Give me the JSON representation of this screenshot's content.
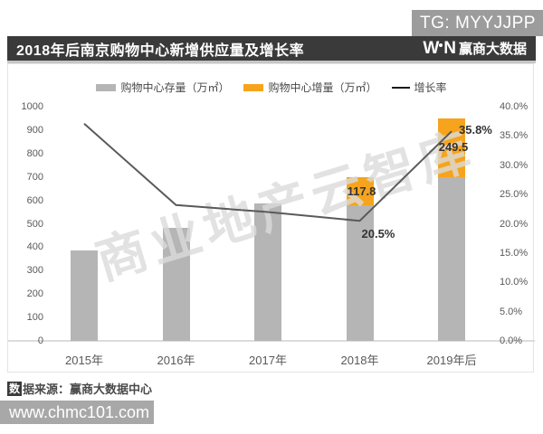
{
  "tg_badge": "TG: MYYJJPP",
  "header": {
    "title": "2018年后南京购物中心新增供应量及增长率",
    "logo_w": "W",
    "logo_n": "N",
    "logo_text": "赢商大数据"
  },
  "legend": {
    "stock": "购物中心存量（万㎡）",
    "increment": "购物中心增量（万㎡）",
    "growth": "增长率"
  },
  "watermark": "商业地产云智库",
  "source": {
    "badge_char": "数",
    "text": "据来源：赢商大数据中心"
  },
  "footer_url": "www.chmc101.com",
  "colors": {
    "bar_stock": "#b5b5b5",
    "bar_increment": "#f6a41d",
    "line": "#5a5a5a",
    "header_bg": "#3a3a3a",
    "tg_bg": "#9c9c9c",
    "footer_bg": "#a8a8a8"
  },
  "chart_data": {
    "type": "bar",
    "subtype": "stacked-bar + line combo, dual axis",
    "title": "2018年后南京购物中心新增供应量及增长率",
    "categories": [
      "2015年",
      "2016年",
      "2017年",
      "2018年",
      "2019年后"
    ],
    "series": [
      {
        "name": "购物中心存量（万㎡）",
        "type": "bar",
        "axis": "left",
        "color": "#b5b5b5",
        "values": [
          385,
          483,
          585,
          580,
          700
        ],
        "note": "values estimated from left axis; not labeled in chart"
      },
      {
        "name": "购物中心增量（万㎡）",
        "type": "bar",
        "axis": "left",
        "color": "#f6a41d",
        "stacked_on": "购物中心存量（万㎡）",
        "values": [
          0,
          0,
          0,
          117.8,
          249.5
        ]
      },
      {
        "name": "增长率",
        "type": "line",
        "axis": "right",
        "color": "#5a5a5a",
        "values_pct": [
          37.1,
          23.2,
          22.0,
          20.5,
          35.8
        ],
        "note": "only 2018 (20.5%) and 2019年后 (35.8%) are labeled; others estimated"
      }
    ],
    "bar_labels": [
      "",
      "",
      "",
      "117.8",
      "249.5"
    ],
    "line_labels": [
      "",
      "",
      "",
      "20.5%",
      "35.8%"
    ],
    "left_axis": {
      "min": 0,
      "max": 1000,
      "step": 100,
      "ticks": [
        "1000",
        "900",
        "800",
        "700",
        "600",
        "500",
        "400",
        "300",
        "200",
        "100",
        "0"
      ]
    },
    "right_axis": {
      "min": 0,
      "max": 40,
      "step": 5,
      "ticks": [
        "40.0%",
        "35.0%",
        "30.0%",
        "25.0%",
        "20.0%",
        "15.0%",
        "10.0%",
        "5.0%",
        "0.0%"
      ],
      "tick_values": [
        40,
        35,
        30,
        25,
        20,
        15,
        10,
        5,
        0
      ]
    },
    "grid": false,
    "legend_position": "top-center"
  }
}
